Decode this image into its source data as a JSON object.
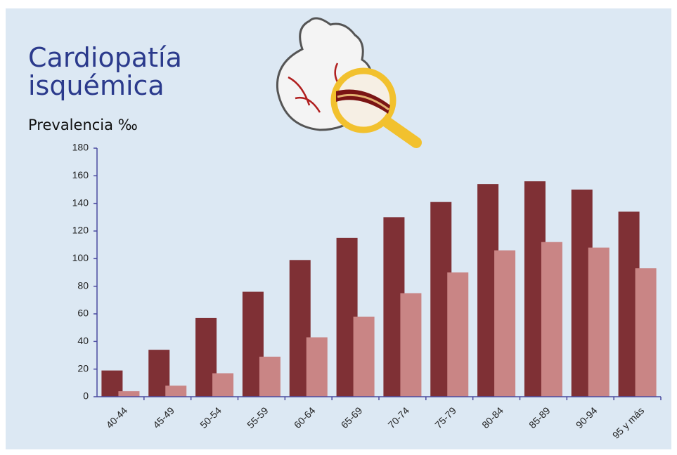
{
  "chart_data": {
    "type": "bar",
    "title": "Cardiopatía isquémica",
    "subtitle": "Prevalencia ‰",
    "categories": [
      "40-44",
      "45-49",
      "50-54",
      "55-59",
      "60-64",
      "65-69",
      "70-74",
      "75-79",
      "80-84",
      "85-89",
      "90-94",
      "95 y más"
    ],
    "series": [
      {
        "color": "#7f3035",
        "values": [
          19,
          34,
          57,
          76,
          99,
          115,
          130,
          141,
          154,
          156,
          150,
          134
        ]
      },
      {
        "color": "#c98585",
        "values": [
          4,
          8,
          17,
          29,
          43,
          58,
          75,
          90,
          106,
          112,
          108,
          93
        ]
      }
    ],
    "ylim": [
      0,
      180
    ],
    "yticks": [
      0,
      20,
      40,
      60,
      80,
      100,
      120,
      140,
      160,
      180
    ],
    "grid": false
  }
}
